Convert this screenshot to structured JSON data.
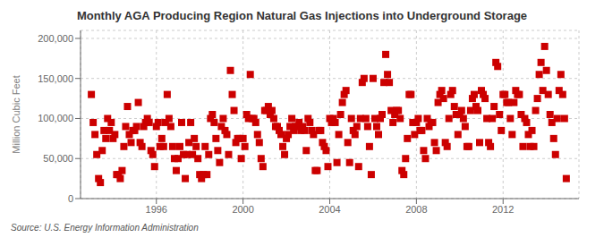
{
  "chart_data": {
    "type": "scatter",
    "title": "Monthly AGA Producing Region Natural Gas Injections into Underground Storage",
    "ylabel": "Million Cubic Feet",
    "annotation": "Source: U.S. Energy Information Administration",
    "color": "#CC0000",
    "marker": "square",
    "grid": true,
    "xlim": [
      1992.5,
      2015.5
    ],
    "xticks": [
      1996,
      2000,
      2004,
      2008,
      2012
    ],
    "ylim": [
      0,
      210000
    ],
    "yticks": [
      0,
      {
        "value": 50000,
        "label": "50,000"
      },
      {
        "value": 100000,
        "label": "100,000"
      },
      {
        "value": 150000,
        "label": "150,000"
      },
      {
        "value": 200000,
        "label": "200,000"
      }
    ],
    "x": [
      1993,
      1993.083333,
      1993.166667,
      1993.25,
      1993.333333,
      1993.416667,
      1993.5,
      1993.583333,
      1993.666667,
      1993.75,
      1993.833333,
      1993.916667,
      1994,
      1994.083333,
      1994.166667,
      1994.25,
      1994.333333,
      1994.416667,
      1994.5,
      1994.583333,
      1994.666667,
      1994.75,
      1994.833333,
      1994.916667,
      1995,
      1995.083333,
      1995.166667,
      1995.25,
      1995.333333,
      1995.416667,
      1995.5,
      1995.583333,
      1995.666667,
      1995.75,
      1995.833333,
      1995.916667,
      1996,
      1996.083333,
      1996.166667,
      1996.25,
      1996.333333,
      1996.416667,
      1996.5,
      1996.583333,
      1996.666667,
      1996.75,
      1996.833333,
      1996.916667,
      1997,
      1997.083333,
      1997.166667,
      1997.25,
      1997.333333,
      1997.416667,
      1997.5,
      1997.583333,
      1997.666667,
      1997.75,
      1997.833333,
      1997.916667,
      1998,
      1998.083333,
      1998.166667,
      1998.25,
      1998.333333,
      1998.416667,
      1998.5,
      1998.583333,
      1998.666667,
      1998.75,
      1998.833333,
      1998.916667,
      1999,
      1999.083333,
      1999.166667,
      1999.25,
      1999.333333,
      1999.416667,
      1999.5,
      1999.583333,
      1999.666667,
      1999.75,
      1999.833333,
      1999.916667,
      2000,
      2000.083333,
      2000.166667,
      2000.25,
      2000.333333,
      2000.416667,
      2000.5,
      2000.583333,
      2000.666667,
      2000.75,
      2000.833333,
      2000.916667,
      2001,
      2001.083333,
      2001.166667,
      2001.25,
      2001.333333,
      2001.416667,
      2001.5,
      2001.583333,
      2001.666667,
      2001.75,
      2001.833333,
      2001.916667,
      2002,
      2002.083333,
      2002.166667,
      2002.25,
      2002.333333,
      2002.416667,
      2002.5,
      2002.583333,
      2002.666667,
      2002.75,
      2002.833333,
      2002.916667,
      2003,
      2003.083333,
      2003.166667,
      2003.25,
      2003.333333,
      2003.416667,
      2003.5,
      2003.583333,
      2003.666667,
      2003.75,
      2003.833333,
      2003.916667,
      2004,
      2004.083333,
      2004.166667,
      2004.25,
      2004.333333,
      2004.416667,
      2004.5,
      2004.583333,
      2004.666667,
      2004.75,
      2004.833333,
      2004.916667,
      2005,
      2005.083333,
      2005.166667,
      2005.25,
      2005.333333,
      2005.416667,
      2005.5,
      2005.583333,
      2005.666667,
      2005.75,
      2005.833333,
      2005.916667,
      2006,
      2006.083333,
      2006.166667,
      2006.25,
      2006.333333,
      2006.416667,
      2006.5,
      2006.583333,
      2006.666667,
      2006.75,
      2006.833333,
      2006.916667,
      2007,
      2007.083333,
      2007.166667,
      2007.25,
      2007.333333,
      2007.416667,
      2007.5,
      2007.583333,
      2007.666667,
      2007.75,
      2007.833333,
      2007.916667,
      2008,
      2008.083333,
      2008.166667,
      2008.25,
      2008.333333,
      2008.416667,
      2008.5,
      2008.583333,
      2008.666667,
      2008.75,
      2008.833333,
      2008.916667,
      2009,
      2009.083333,
      2009.166667,
      2009.25,
      2009.333333,
      2009.416667,
      2009.5,
      2009.583333,
      2009.666667,
      2009.75,
      2009.833333,
      2009.916667,
      2010,
      2010.083333,
      2010.166667,
      2010.25,
      2010.333333,
      2010.416667,
      2010.5,
      2010.583333,
      2010.666667,
      2010.75,
      2010.833333,
      2010.916667,
      2011,
      2011.083333,
      2011.166667,
      2011.25,
      2011.333333,
      2011.416667,
      2011.5,
      2011.583333,
      2011.666667,
      2011.75,
      2011.833333,
      2011.916667,
      2012,
      2012.083333,
      2012.166667,
      2012.25,
      2012.333333,
      2012.416667,
      2012.5,
      2012.583333,
      2012.666667,
      2012.75,
      2012.833333,
      2012.916667,
      2013,
      2013.083333,
      2013.166667,
      2013.25,
      2013.333333,
      2013.416667,
      2013.5,
      2013.583333,
      2013.666667,
      2013.75,
      2013.833333,
      2013.916667,
      2014,
      2014.083333,
      2014.166667,
      2014.25,
      2014.333333,
      2014.416667,
      2014.5,
      2014.583333,
      2014.666667,
      2014.75,
      2014.833333,
      2014.916667
    ],
    "values": [
      130000,
      95000,
      80000,
      55000,
      25000,
      20000,
      60000,
      85000,
      75000,
      100000,
      85000,
      95000,
      75000,
      80000,
      30000,
      30000,
      25000,
      35000,
      65000,
      90000,
      115000,
      80000,
      70000,
      85000,
      85000,
      90000,
      120000,
      70000,
      65000,
      90000,
      95000,
      100000,
      95000,
      60000,
      55000,
      40000,
      90000,
      95000,
      65000,
      75000,
      65000,
      95000,
      130000,
      100000,
      90000,
      65000,
      50000,
      35000,
      50000,
      65000,
      95000,
      55000,
      25000,
      55000,
      70000,
      95000,
      55000,
      75000,
      65000,
      50000,
      30000,
      25000,
      30000,
      65000,
      30000,
      55000,
      100000,
      105000,
      95000,
      75000,
      60000,
      45000,
      90000,
      100000,
      85000,
      80000,
      55000,
      160000,
      130000,
      110000,
      70000,
      75000,
      75000,
      50000,
      75000,
      65000,
      105000,
      100000,
      155000,
      100000,
      100000,
      95000,
      80000,
      70000,
      50000,
      40000,
      110000,
      110000,
      115000,
      105000,
      110000,
      100000,
      90000,
      90000,
      85000,
      80000,
      65000,
      55000,
      75000,
      80000,
      90000,
      100000,
      85000,
      90000,
      90000,
      95000,
      85000,
      90000,
      85000,
      60000,
      100000,
      95000,
      85000,
      80000,
      35000,
      35000,
      85000,
      85000,
      70000,
      65000,
      60000,
      40000,
      100000,
      95000,
      100000,
      95000,
      45000,
      80000,
      105000,
      120000,
      130000,
      135000,
      70000,
      45000,
      100000,
      85000,
      80000,
      90000,
      40000,
      100000,
      145000,
      150000,
      100000,
      90000,
      65000,
      30000,
      150000,
      100000,
      90000,
      80000,
      100000,
      105000,
      145000,
      180000,
      155000,
      145000,
      110000,
      95000,
      105000,
      110000,
      110000,
      100000,
      35000,
      30000,
      50000,
      75000,
      130000,
      130000,
      95000,
      80000,
      95000,
      100000,
      85000,
      85000,
      60000,
      50000,
      100000,
      90000,
      95000,
      95000,
      70000,
      60000,
      120000,
      130000,
      135000,
      125000,
      70000,
      65000,
      100000,
      130000,
      135000,
      115000,
      105000,
      80000,
      105000,
      110000,
      100000,
      90000,
      65000,
      65000,
      110000,
      125000,
      130000,
      115000,
      110000,
      70000,
      135000,
      130000,
      125000,
      100000,
      70000,
      65000,
      100000,
      115000,
      170000,
      165000,
      105000,
      85000,
      130000,
      130000,
      120000,
      120000,
      100000,
      80000,
      120000,
      135000,
      130000,
      130000,
      105000,
      65000,
      100000,
      95000,
      80000,
      65000,
      85000,
      65000,
      110000,
      125000,
      155000,
      170000,
      135000,
      190000,
      160000,
      130000,
      105000,
      95000,
      75000,
      55000,
      100000,
      135000,
      155000,
      130000,
      100000,
      25000
    ]
  }
}
